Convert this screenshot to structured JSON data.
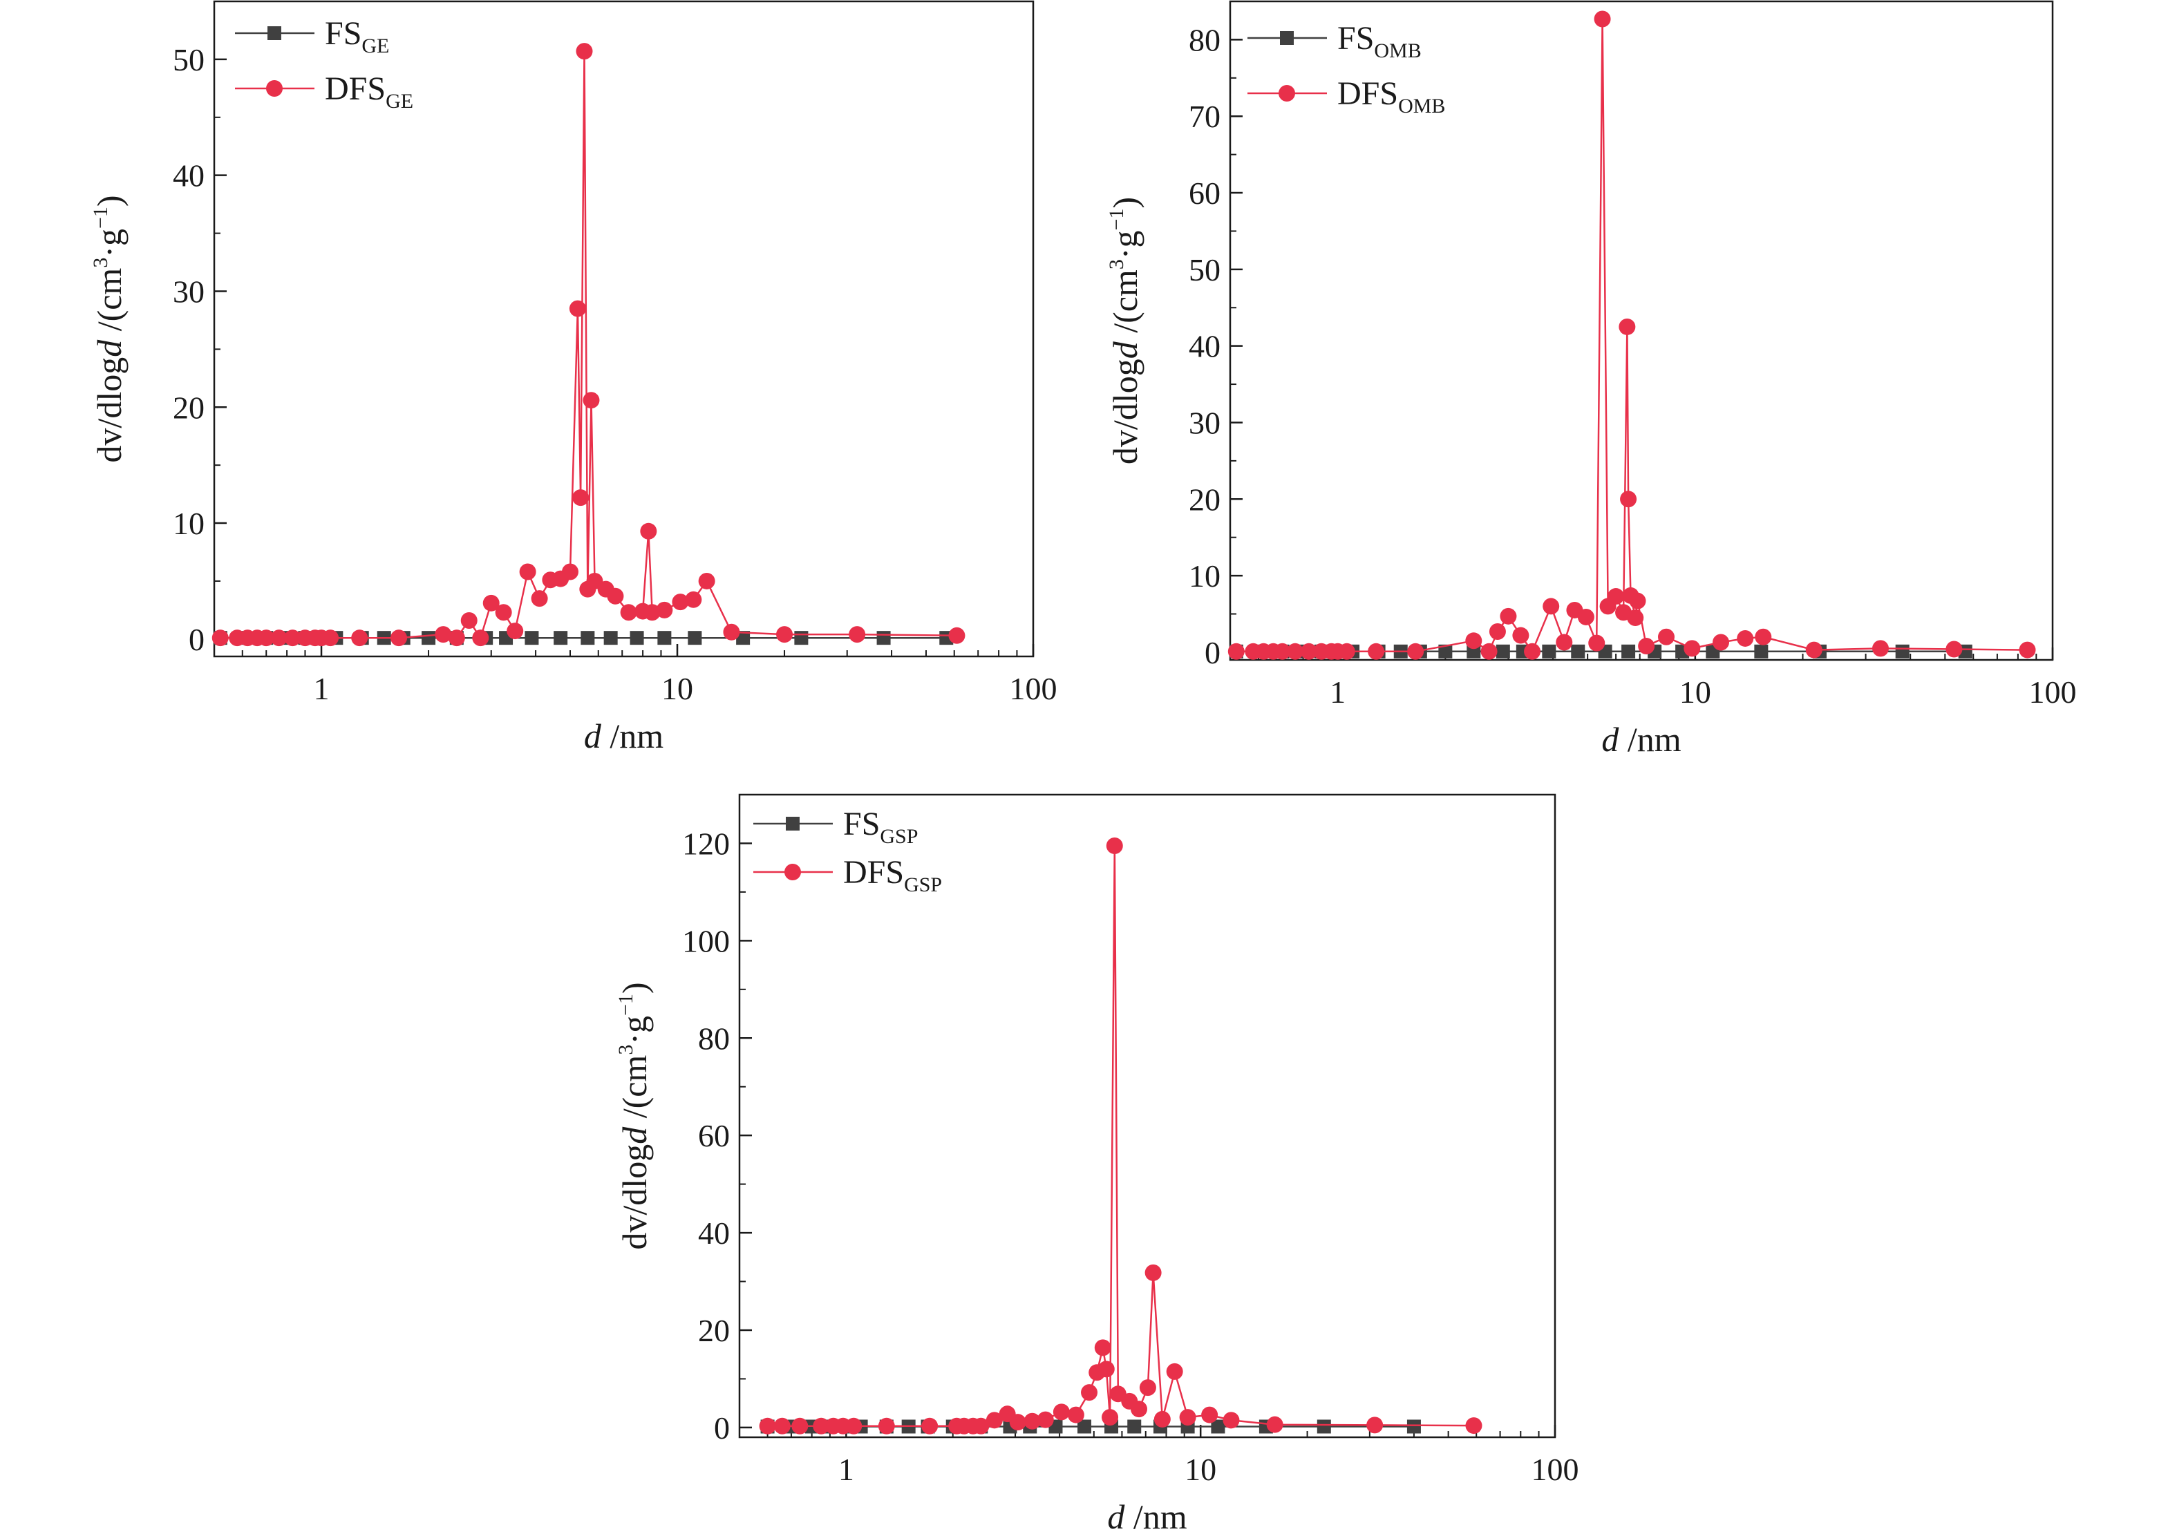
{
  "chart_data": [
    {
      "type": "line",
      "x_scale": "log",
      "xlim": [
        0.5,
        100
      ],
      "ylim": [
        -1.5,
        55
      ],
      "xticks": [
        1,
        10,
        100
      ],
      "xtick_labels": [
        "1",
        "10",
        "100"
      ],
      "yticks": [
        0,
        10,
        20,
        30,
        40,
        50
      ],
      "ytick_labels": [
        "0",
        "10",
        "20",
        "30",
        "40",
        "50"
      ],
      "xlabel_italic": "d",
      "xlabel_rest": " /nm",
      "ylabel_part1": "dv/dlog",
      "ylabel_italic": "d",
      "ylabel_part2": " /(cm",
      "ylabel_sup1": "3",
      "ylabel_part3": "·g",
      "ylabel_sup2": "−1",
      "ylabel_part4": ")",
      "legend_position": "top-left",
      "series": [
        {
          "name": "FS",
          "name_sub": "GE",
          "color": "#404040",
          "marker": "square",
          "x": [
            0.52,
            0.6,
            0.7,
            0.8,
            0.9,
            1.0,
            1.1,
            1.3,
            1.5,
            1.7,
            2.0,
            2.4,
            2.9,
            3.3,
            3.9,
            4.7,
            5.6,
            6.5,
            7.7,
            9.2,
            11.2,
            15.3,
            22.3,
            38,
            57
          ],
          "y": [
            0.1,
            0.1,
            0.1,
            0.1,
            0.1,
            0.1,
            0.1,
            0.1,
            0.1,
            0.1,
            0.1,
            0.1,
            0.1,
            0.1,
            0.1,
            0.1,
            0.1,
            0.1,
            0.1,
            0.1,
            0.1,
            0.1,
            0.1,
            0.1,
            0.1
          ]
        },
        {
          "name": "DFS",
          "name_sub": "GE",
          "color": "#e8304a",
          "marker": "circle",
          "x": [
            0.52,
            0.58,
            0.62,
            0.66,
            0.7,
            0.76,
            0.83,
            0.9,
            0.96,
            1.0,
            1.06,
            1.28,
            1.65,
            2.2,
            2.4,
            2.6,
            2.8,
            3.0,
            3.25,
            3.5,
            3.8,
            4.1,
            4.4,
            4.7,
            5.0,
            5.25,
            5.35,
            5.48,
            5.6,
            5.73,
            5.86,
            6.3,
            6.7,
            7.3,
            8.0,
            8.3,
            8.5,
            9.2,
            10.2,
            11.1,
            12.1,
            14.2,
            20.0,
            32.0,
            61.0
          ],
          "y": [
            0.1,
            0.1,
            0.1,
            0.1,
            0.1,
            0.1,
            0.1,
            0.1,
            0.1,
            0.1,
            0.1,
            0.1,
            0.1,
            0.4,
            0.1,
            1.6,
            0.1,
            3.1,
            2.3,
            0.7,
            5.8,
            3.5,
            5.1,
            5.2,
            5.8,
            28.5,
            12.2,
            50.7,
            4.3,
            20.6,
            5.0,
            4.3,
            3.7,
            2.3,
            2.4,
            9.3,
            2.3,
            2.5,
            3.2,
            3.4,
            5.0,
            0.6,
            0.4,
            0.4,
            0.3
          ]
        }
      ]
    },
    {
      "type": "line",
      "x_scale": "log",
      "xlim": [
        0.5,
        100
      ],
      "ylim": [
        -1,
        85
      ],
      "xticks": [
        1,
        10,
        100
      ],
      "xtick_labels": [
        "1",
        "10",
        "100"
      ],
      "yticks": [
        0,
        10,
        20,
        30,
        40,
        50,
        60,
        70,
        80
      ],
      "ytick_labels": [
        "0",
        "10",
        "20",
        "30",
        "40",
        "50",
        "60",
        "70",
        "80"
      ],
      "xlabel_italic": "d",
      "xlabel_rest": " /nm",
      "ylabel_part1": "dv/dlog",
      "ylabel_italic": "d",
      "ylabel_part2": " /(cm",
      "ylabel_sup1": "3",
      "ylabel_part3": "·g",
      "ylabel_sup2": "−1",
      "ylabel_part4": ")",
      "legend_position": "top-left",
      "series": [
        {
          "name": "FS",
          "name_sub": "OMB",
          "color": "#404040",
          "marker": "square",
          "x": [
            0.52,
            0.6,
            0.7,
            0.8,
            0.9,
            1.0,
            1.1,
            1.3,
            1.5,
            1.7,
            2.0,
            2.4,
            2.9,
            3.3,
            3.9,
            4.7,
            5.6,
            6.5,
            7.7,
            9.2,
            11.2,
            15.3,
            22.3,
            38,
            57
          ],
          "y": [
            0.1,
            0.1,
            0.1,
            0.1,
            0.1,
            0.1,
            0.1,
            0.1,
            0.1,
            0.1,
            0.1,
            0.1,
            0.1,
            0.1,
            0.1,
            0.1,
            0.1,
            0.1,
            0.1,
            0.1,
            0.1,
            0.1,
            0.1,
            0.1,
            0.1
          ]
        },
        {
          "name": "DFS",
          "name_sub": "OMB",
          "color": "#e8304a",
          "marker": "circle",
          "x": [
            0.52,
            0.58,
            0.62,
            0.66,
            0.7,
            0.76,
            0.83,
            0.9,
            0.96,
            1.0,
            1.06,
            1.28,
            1.65,
            2.4,
            2.65,
            2.8,
            3.0,
            3.25,
            3.5,
            3.95,
            4.3,
            4.6,
            4.95,
            5.3,
            5.5,
            5.7,
            6.0,
            6.3,
            6.45,
            6.5,
            6.6,
            6.8,
            6.9,
            7.3,
            8.3,
            9.8,
            11.8,
            13.8,
            15.5,
            21.5,
            33.0,
            53.0,
            85.0
          ],
          "y": [
            0.1,
            0.1,
            0.1,
            0.1,
            0.1,
            0.1,
            0.1,
            0.1,
            0.1,
            0.1,
            0.1,
            0.1,
            0.1,
            1.5,
            0.1,
            2.7,
            4.7,
            2.2,
            0.1,
            6.0,
            1.3,
            5.5,
            4.6,
            1.2,
            82.7,
            6.0,
            7.3,
            5.2,
            42.5,
            20.0,
            7.4,
            4.5,
            6.7,
            0.8,
            2.0,
            0.5,
            1.3,
            1.8,
            2.0,
            0.3,
            0.5,
            0.4,
            0.3
          ]
        }
      ]
    },
    {
      "type": "line",
      "x_scale": "log",
      "xlim": [
        0.5,
        100
      ],
      "ylim": [
        -2,
        130
      ],
      "xticks": [
        1,
        10,
        100
      ],
      "xtick_labels": [
        "1",
        "10",
        "100"
      ],
      "yticks": [
        0,
        20,
        40,
        60,
        80,
        100,
        120
      ],
      "ytick_labels": [
        "0",
        "20",
        "40",
        "60",
        "80",
        "100",
        "120"
      ],
      "xlabel_italic": "d",
      "xlabel_rest": " /nm",
      "ylabel_part1": "dv/dlog",
      "ylabel_italic": "d",
      "ylabel_part2": " /(cm",
      "ylabel_sup1": "3",
      "ylabel_part3": "·g",
      "ylabel_sup2": "−1",
      "ylabel_part4": ")",
      "legend_position": "top-left",
      "series": [
        {
          "name": "FS",
          "name_sub": "GSP",
          "color": "#404040",
          "marker": "square",
          "x": [
            0.6,
            0.7,
            0.8,
            0.9,
            1.0,
            1.1,
            1.3,
            1.5,
            1.7,
            2.0,
            2.4,
            2.9,
            3.3,
            3.9,
            4.7,
            5.6,
            6.5,
            7.7,
            9.2,
            11.2,
            15.3,
            22.3,
            40
          ],
          "y": [
            0.2,
            0.2,
            0.2,
            0.2,
            0.2,
            0.2,
            0.2,
            0.2,
            0.2,
            0.2,
            0.2,
            0.2,
            0.2,
            0.2,
            0.2,
            0.2,
            0.2,
            0.2,
            0.2,
            0.2,
            0.2,
            0.2,
            0.2
          ]
        },
        {
          "name": "DFS",
          "name_sub": "GSP",
          "color": "#e8304a",
          "marker": "circle",
          "x": [
            0.6,
            0.66,
            0.74,
            0.85,
            0.92,
            0.98,
            1.05,
            1.3,
            1.72,
            2.05,
            2.15,
            2.28,
            2.4,
            2.62,
            2.85,
            3.05,
            3.35,
            3.65,
            4.05,
            4.45,
            4.85,
            5.1,
            5.3,
            5.42,
            5.55,
            5.72,
            5.85,
            6.3,
            6.7,
            7.1,
            7.35,
            7.8,
            8.45,
            9.2,
            10.6,
            12.2,
            16.2,
            31.0,
            59.0
          ],
          "y": [
            0.3,
            0.3,
            0.3,
            0.3,
            0.3,
            0.3,
            0.3,
            0.3,
            0.3,
            0.3,
            0.3,
            0.3,
            0.3,
            1.5,
            2.8,
            1.1,
            1.3,
            1.6,
            3.2,
            2.6,
            7.2,
            11.3,
            16.4,
            12.0,
            2.1,
            119.5,
            6.9,
            5.4,
            3.8,
            8.2,
            31.8,
            1.7,
            11.5,
            2.1,
            2.6,
            1.5,
            0.6,
            0.5,
            0.4
          ]
        }
      ]
    }
  ]
}
